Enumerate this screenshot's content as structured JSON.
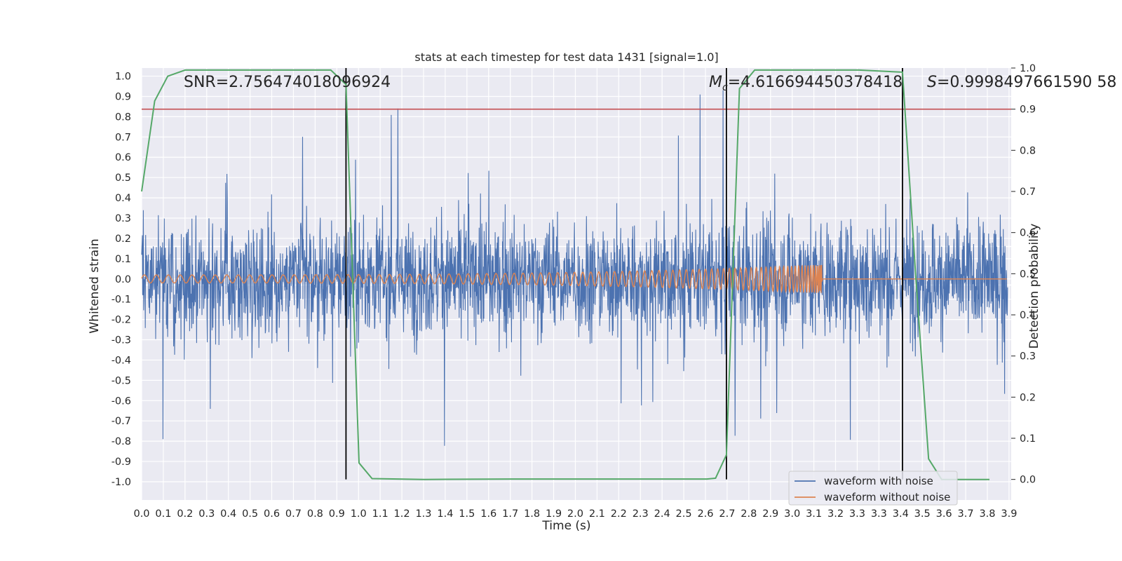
{
  "chart_data": {
    "type": "line",
    "title": "stats at each timestep for test data 1431 [signal=1.0]",
    "xlabel": "Time (s)",
    "ylabel": "Whitened strain",
    "y2label": "Detection probability",
    "xlim": [
      0.0,
      4.0
    ],
    "ylim": [
      -1.09,
      1.04
    ],
    "y2lim": [
      -0.05,
      1.0
    ],
    "grid": true,
    "legend_position": "bottom-right",
    "colors": {
      "noisy": "#4c72b0",
      "clean": "#dd8452",
      "prob": "#55a868",
      "threshold": "#c44e52",
      "markers": "#000000",
      "plot_bg": "#eaeaf2",
      "grid": "#ffffff"
    },
    "annotations": {
      "snr": "SNR=2.756474018096924",
      "mc_symbol": "M",
      "mc_sub": "c",
      "mc_rest": "=4.616694450378418",
      "s_symbol": "S",
      "s_rest": "=0.9998497661590 58"
    },
    "x_ticks": [
      "0.0",
      "0.1",
      "0.2",
      "0.3",
      "0.4",
      "0.5",
      "0.6",
      "0.7",
      "0.8",
      "0.9",
      "1.0",
      "1.1",
      "1.2",
      "1.3",
      "1.4",
      "1.5",
      "1.6",
      "1.7",
      "1.8",
      "1.9",
      "2.0",
      "2.1",
      "2.2",
      "2.3",
      "2.4",
      "2.5",
      "2.6",
      "2.7",
      "2.8",
      "2.9",
      "3.0",
      "3.1",
      "3.2",
      "3.3",
      "3.3",
      "3.4",
      "3.5",
      "3.6",
      "3.7",
      "3.8",
      "3.9"
    ],
    "y_ticks": [
      "1.0",
      "0.9",
      "0.8",
      "0.7",
      "0.6",
      "0.5",
      "0.4",
      "0.3",
      "0.2",
      "0.1",
      "0.0",
      "-0.1",
      "-0.2",
      "-0.3",
      "-0.4",
      "-0.5",
      "-0.6",
      "-0.7",
      "-0.8",
      "-0.9",
      "-1.0"
    ],
    "y2_ticks": [
      "1.0",
      "0.9",
      "0.8",
      "0.7",
      "0.6",
      "0.5",
      "0.4",
      "0.3",
      "0.2",
      "0.1",
      "0.0"
    ],
    "series": [
      {
        "name": "waveform with noise",
        "kind": "noisy_strain",
        "approx_amplitude": 0.35,
        "peak_max": 0.93,
        "peak_min": -1.0
      },
      {
        "name": "waveform without noise",
        "kind": "chirp",
        "start_amplitude": 0.02,
        "end_amplitude": 0.07,
        "merger_time": 3.13
      },
      {
        "kind": "detection_probability",
        "axis": "right",
        "x": [
          0.0,
          0.06,
          0.12,
          0.2,
          0.5,
          0.87,
          0.94,
          1.0,
          1.06,
          1.3,
          1.7,
          2.3,
          2.6,
          2.64,
          2.69,
          2.75,
          2.82,
          3.0,
          3.3,
          3.5,
          3.56,
          3.62,
          3.68,
          3.9
        ],
        "y": [
          0.7,
          0.92,
          0.98,
          0.995,
          0.995,
          0.995,
          0.96,
          0.04,
          0.002,
          0.0,
          0.001,
          0.001,
          0.001,
          0.003,
          0.06,
          0.95,
          0.995,
          0.995,
          0.995,
          0.99,
          0.5,
          0.05,
          0.0,
          0.0
        ]
      }
    ],
    "threshold": {
      "axis": "right",
      "value": 0.9
    },
    "vertical_markers": [
      0.94,
      2.69,
      3.5
    ],
    "hlines": [
      -0.03,
      0.16
    ]
  }
}
